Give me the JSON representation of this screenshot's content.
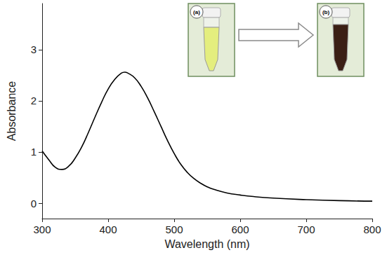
{
  "chart_data": {
    "type": "line",
    "x_label": "Wavelength (nm)",
    "y_label": "Absorbance",
    "x": [
      300,
      310,
      320,
      330,
      340,
      350,
      360,
      370,
      380,
      390,
      400,
      410,
      420,
      425,
      430,
      440,
      450,
      460,
      470,
      480,
      490,
      500,
      510,
      520,
      530,
      540,
      550,
      560,
      580,
      600,
      620,
      650,
      700,
      750,
      800
    ],
    "values": [
      1.02,
      0.85,
      0.7,
      0.66,
      0.72,
      0.88,
      1.1,
      1.38,
      1.68,
      1.97,
      2.23,
      2.42,
      2.54,
      2.56,
      2.54,
      2.45,
      2.28,
      2.05,
      1.78,
      1.5,
      1.22,
      0.97,
      0.76,
      0.6,
      0.48,
      0.39,
      0.32,
      0.27,
      0.2,
      0.16,
      0.13,
      0.1,
      0.07,
      0.05,
      0.04
    ],
    "color": "#000000",
    "xlim": [
      300,
      800
    ],
    "xticks": [
      300,
      400,
      500,
      600,
      700,
      800
    ],
    "ylim": [
      -0.3,
      3.9
    ],
    "yticks": [
      0,
      1,
      2,
      3
    ],
    "grid": false,
    "annotations": [
      "(a)",
      "(b)"
    ]
  }
}
